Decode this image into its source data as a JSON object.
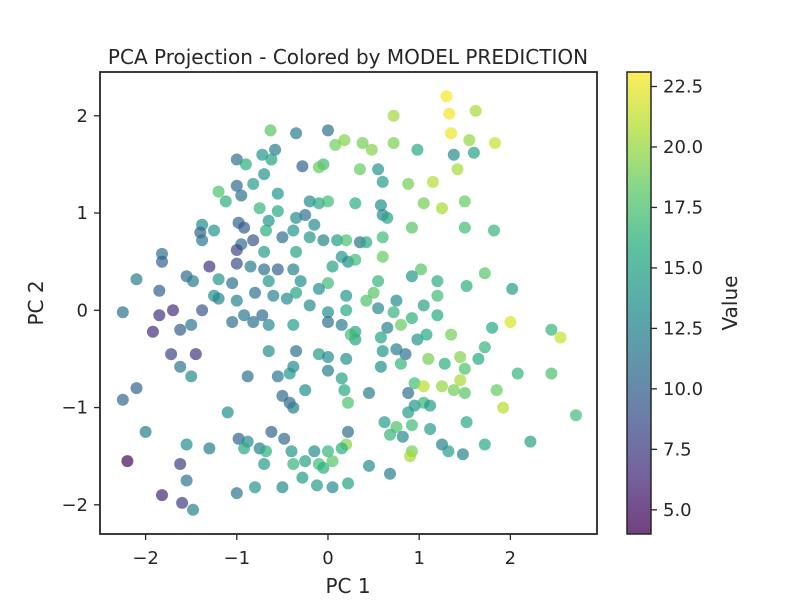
{
  "chart_data": {
    "type": "scatter",
    "title": "PCA Projection - Colored by MODEL PREDICTION",
    "xlabel": "PC 1",
    "ylabel": "PC 2",
    "xlim": [
      -2.5,
      2.95
    ],
    "ylim": [
      -2.3,
      2.45
    ],
    "xticks": [
      -2,
      -1,
      0,
      1,
      2
    ],
    "yticks": [
      -2,
      -1,
      0,
      1,
      2
    ],
    "grid": false,
    "colorbar": {
      "label": "Value",
      "range": [
        4.0,
        23.1
      ],
      "ticks": [
        5.0,
        7.5,
        10.0,
        12.5,
        15.0,
        17.5,
        20.0,
        22.5
      ],
      "colormap": "viridis"
    },
    "point_alpha": 0.7,
    "points": [
      {
        "x": 1.3,
        "y": 2.2,
        "v": 23.0
      },
      {
        "x": 1.33,
        "y": 2.02,
        "v": 22.8
      },
      {
        "x": 1.62,
        "y": 2.05,
        "v": 20.5
      },
      {
        "x": 0.72,
        "y": 2.0,
        "v": 20.2
      },
      {
        "x": 1.35,
        "y": 1.82,
        "v": 22.6
      },
      {
        "x": 1.55,
        "y": 1.75,
        "v": 20.0
      },
      {
        "x": 1.83,
        "y": 1.72,
        "v": 21.6
      },
      {
        "x": 0.0,
        "y": 1.85,
        "v": 11.0
      },
      {
        "x": -0.35,
        "y": 1.82,
        "v": 12.0
      },
      {
        "x": -0.63,
        "y": 1.85,
        "v": 18.0
      },
      {
        "x": 0.08,
        "y": 1.7,
        "v": 18.8
      },
      {
        "x": 0.18,
        "y": 1.75,
        "v": 19.5
      },
      {
        "x": 0.38,
        "y": 1.72,
        "v": 19.0
      },
      {
        "x": 0.72,
        "y": 1.72,
        "v": 19.2
      },
      {
        "x": 0.48,
        "y": 1.65,
        "v": 19.5
      },
      {
        "x": 0.98,
        "y": 1.65,
        "v": 15.5
      },
      {
        "x": 1.38,
        "y": 1.6,
        "v": 13.0
      },
      {
        "x": 1.6,
        "y": 1.62,
        "v": 15.0
      },
      {
        "x": -0.58,
        "y": 1.65,
        "v": 12.0
      },
      {
        "x": -0.72,
        "y": 1.6,
        "v": 14.0
      },
      {
        "x": -1.0,
        "y": 1.55,
        "v": 11.0
      },
      {
        "x": -0.9,
        "y": 1.5,
        "v": 16.0
      },
      {
        "x": -0.62,
        "y": 1.55,
        "v": 15.0
      },
      {
        "x": -0.28,
        "y": 1.48,
        "v": 10.0
      },
      {
        "x": -0.05,
        "y": 1.5,
        "v": 17.0
      },
      {
        "x": -0.1,
        "y": 1.47,
        "v": 18.5
      },
      {
        "x": 0.35,
        "y": 1.45,
        "v": 18.5
      },
      {
        "x": 0.55,
        "y": 1.45,
        "v": 14.0
      },
      {
        "x": 1.42,
        "y": 1.45,
        "v": 20.5
      },
      {
        "x": -0.7,
        "y": 1.4,
        "v": 14.0
      },
      {
        "x": -0.82,
        "y": 1.3,
        "v": 14.5
      },
      {
        "x": 1.15,
        "y": 1.32,
        "v": 21.0
      },
      {
        "x": 0.88,
        "y": 1.3,
        "v": 19.0
      },
      {
        "x": 0.6,
        "y": 1.32,
        "v": 14.5
      },
      {
        "x": -1.0,
        "y": 1.28,
        "v": 10.5
      },
      {
        "x": -1.2,
        "y": 1.22,
        "v": 17.5
      },
      {
        "x": -0.95,
        "y": 1.18,
        "v": 11.0
      },
      {
        "x": -0.55,
        "y": 1.2,
        "v": 14.0
      },
      {
        "x": -1.12,
        "y": 1.12,
        "v": 16.0
      },
      {
        "x": 1.05,
        "y": 1.1,
        "v": 19.0
      },
      {
        "x": -0.2,
        "y": 1.12,
        "v": 13.0
      },
      {
        "x": -0.1,
        "y": 1.1,
        "v": 15.5
      },
      {
        "x": 0.0,
        "y": 1.12,
        "v": 17.0
      },
      {
        "x": 0.3,
        "y": 1.1,
        "v": 16.0
      },
      {
        "x": 0.58,
        "y": 1.08,
        "v": 13.5
      },
      {
        "x": 1.25,
        "y": 1.05,
        "v": 20.5
      },
      {
        "x": 1.5,
        "y": 1.12,
        "v": 18.5
      },
      {
        "x": -0.75,
        "y": 1.05,
        "v": 16.5
      },
      {
        "x": -0.55,
        "y": 1.02,
        "v": 15.5
      },
      {
        "x": -0.25,
        "y": 0.98,
        "v": 11.0
      },
      {
        "x": -0.35,
        "y": 0.95,
        "v": 13.0
      },
      {
        "x": 0.6,
        "y": 0.98,
        "v": 13.0
      },
      {
        "x": 0.65,
        "y": 0.95,
        "v": 15.0
      },
      {
        "x": -0.65,
        "y": 0.92,
        "v": 14.0
      },
      {
        "x": -0.98,
        "y": 0.9,
        "v": 10.0
      },
      {
        "x": -0.92,
        "y": 0.85,
        "v": 9.5
      },
      {
        "x": -0.68,
        "y": 0.82,
        "v": 16.0
      },
      {
        "x": -1.38,
        "y": 0.88,
        "v": 13.5
      },
      {
        "x": -1.25,
        "y": 0.82,
        "v": 14.0
      },
      {
        "x": -1.4,
        "y": 0.8,
        "v": 10.0
      },
      {
        "x": -0.15,
        "y": 0.88,
        "v": 13.0
      },
      {
        "x": -0.38,
        "y": 0.82,
        "v": 14.0
      },
      {
        "x": -0.5,
        "y": 0.75,
        "v": 11.0
      },
      {
        "x": 0.92,
        "y": 0.85,
        "v": 18.0
      },
      {
        "x": 1.5,
        "y": 0.85,
        "v": 17.0
      },
      {
        "x": 1.82,
        "y": 0.82,
        "v": 16.5
      },
      {
        "x": -0.2,
        "y": 0.75,
        "v": 14.0
      },
      {
        "x": -0.05,
        "y": 0.72,
        "v": 12.5
      },
      {
        "x": 0.1,
        "y": 0.72,
        "v": 14.5
      },
      {
        "x": 0.2,
        "y": 0.72,
        "v": 17.5
      },
      {
        "x": 0.35,
        "y": 0.7,
        "v": 11.0
      },
      {
        "x": 0.42,
        "y": 0.7,
        "v": 15.5
      },
      {
        "x": 0.6,
        "y": 0.75,
        "v": 17.0
      },
      {
        "x": -1.38,
        "y": 0.72,
        "v": 11.5
      },
      {
        "x": -0.95,
        "y": 0.68,
        "v": 11.0
      },
      {
        "x": -0.82,
        "y": 0.72,
        "v": 9.0
      },
      {
        "x": -1.0,
        "y": 0.62,
        "v": 8.0
      },
      {
        "x": -0.7,
        "y": 0.6,
        "v": 14.5
      },
      {
        "x": -0.35,
        "y": 0.6,
        "v": 15.0
      },
      {
        "x": -1.82,
        "y": 0.58,
        "v": 11.0
      },
      {
        "x": -1.82,
        "y": 0.5,
        "v": 10.0
      },
      {
        "x": 0.15,
        "y": 0.55,
        "v": 14.0
      },
      {
        "x": 0.22,
        "y": 0.5,
        "v": 13.5
      },
      {
        "x": 0.3,
        "y": 0.52,
        "v": 17.0
      },
      {
        "x": 0.6,
        "y": 0.55,
        "v": 18.5
      },
      {
        "x": -1.3,
        "y": 0.45,
        "v": 7.0
      },
      {
        "x": -1.0,
        "y": 0.48,
        "v": 8.5
      },
      {
        "x": -0.85,
        "y": 0.45,
        "v": 12.0
      },
      {
        "x": -0.7,
        "y": 0.42,
        "v": 11.0
      },
      {
        "x": -0.55,
        "y": 0.42,
        "v": 10.0
      },
      {
        "x": -0.38,
        "y": 0.42,
        "v": 12.5
      },
      {
        "x": 0.05,
        "y": 0.45,
        "v": 15.0
      },
      {
        "x": 1.02,
        "y": 0.42,
        "v": 18.0
      },
      {
        "x": -1.55,
        "y": 0.35,
        "v": 10.5
      },
      {
        "x": -1.48,
        "y": 0.3,
        "v": 12.0
      },
      {
        "x": -2.1,
        "y": 0.32,
        "v": 12.0
      },
      {
        "x": -1.2,
        "y": 0.32,
        "v": 14.0
      },
      {
        "x": -1.05,
        "y": 0.28,
        "v": 11.0
      },
      {
        "x": -0.65,
        "y": 0.3,
        "v": 14.0
      },
      {
        "x": -0.3,
        "y": 0.3,
        "v": 13.5
      },
      {
        "x": 0.0,
        "y": 0.28,
        "v": 17.0
      },
      {
        "x": 0.55,
        "y": 0.3,
        "v": 16.5
      },
      {
        "x": 0.92,
        "y": 0.35,
        "v": 14.0
      },
      {
        "x": 1.2,
        "y": 0.3,
        "v": 16.0
      },
      {
        "x": 1.72,
        "y": 0.38,
        "v": 18.0
      },
      {
        "x": 1.52,
        "y": 0.25,
        "v": 16.0
      },
      {
        "x": 2.02,
        "y": 0.22,
        "v": 14.5
      },
      {
        "x": -1.85,
        "y": 0.2,
        "v": 9.5
      },
      {
        "x": -1.25,
        "y": 0.15,
        "v": 13.5
      },
      {
        "x": -1.2,
        "y": 0.12,
        "v": 12.5
      },
      {
        "x": -1.0,
        "y": 0.1,
        "v": 12.5
      },
      {
        "x": -0.8,
        "y": 0.18,
        "v": 11.0
      },
      {
        "x": -0.6,
        "y": 0.15,
        "v": 12.5
      },
      {
        "x": -0.45,
        "y": 0.12,
        "v": 13.0
      },
      {
        "x": -0.35,
        "y": 0.18,
        "v": 15.0
      },
      {
        "x": -0.1,
        "y": 0.22,
        "v": 13.5
      },
      {
        "x": 0.2,
        "y": 0.15,
        "v": 14.0
      },
      {
        "x": 0.5,
        "y": 0.18,
        "v": 18.0
      },
      {
        "x": 0.42,
        "y": 0.1,
        "v": 17.5
      },
      {
        "x": 0.75,
        "y": 0.1,
        "v": 13.0
      },
      {
        "x": 1.2,
        "y": 0.15,
        "v": 17.0
      },
      {
        "x": -1.7,
        "y": 0.0,
        "v": 6.5
      },
      {
        "x": -2.25,
        "y": -0.02,
        "v": 11.0
      },
      {
        "x": -1.85,
        "y": -0.05,
        "v": 7.0
      },
      {
        "x": -1.38,
        "y": 0.0,
        "v": 9.0
      },
      {
        "x": -0.92,
        "y": -0.05,
        "v": 11.5
      },
      {
        "x": -0.72,
        "y": -0.05,
        "v": 10.5
      },
      {
        "x": -0.2,
        "y": 0.05,
        "v": 13.0
      },
      {
        "x": 0.0,
        "y": -0.02,
        "v": 13.5
      },
      {
        "x": 0.2,
        "y": 0.0,
        "v": 15.5
      },
      {
        "x": 0.55,
        "y": 0.02,
        "v": 13.0
      },
      {
        "x": 0.72,
        "y": -0.02,
        "v": 16.5
      },
      {
        "x": 0.92,
        "y": -0.08,
        "v": 16.0
      },
      {
        "x": 1.05,
        "y": 0.05,
        "v": 15.0
      },
      {
        "x": 1.2,
        "y": -0.05,
        "v": 15.5
      },
      {
        "x": 2.0,
        "y": -0.12,
        "v": 22.0
      },
      {
        "x": 2.45,
        "y": -0.2,
        "v": 16.5
      },
      {
        "x": 2.55,
        "y": -0.28,
        "v": 21.5
      },
      {
        "x": -1.5,
        "y": -0.15,
        "v": 11.5
      },
      {
        "x": -1.62,
        "y": -0.2,
        "v": 9.5
      },
      {
        "x": -1.92,
        "y": -0.22,
        "v": 6.5
      },
      {
        "x": -1.05,
        "y": -0.12,
        "v": 11.0
      },
      {
        "x": -0.82,
        "y": -0.12,
        "v": 11.0
      },
      {
        "x": -0.65,
        "y": -0.15,
        "v": 13.0
      },
      {
        "x": -0.38,
        "y": -0.15,
        "v": 14.5
      },
      {
        "x": 0.0,
        "y": -0.12,
        "v": 11.0
      },
      {
        "x": 0.15,
        "y": -0.15,
        "v": 12.0
      },
      {
        "x": 0.3,
        "y": -0.22,
        "v": 15.5
      },
      {
        "x": 0.3,
        "y": -0.3,
        "v": 15.0
      },
      {
        "x": 0.25,
        "y": -0.25,
        "v": 17.0
      },
      {
        "x": 0.65,
        "y": -0.18,
        "v": 12.5
      },
      {
        "x": 0.8,
        "y": -0.15,
        "v": 18.5
      },
      {
        "x": 0.58,
        "y": -0.28,
        "v": 15.0
      },
      {
        "x": 0.98,
        "y": -0.3,
        "v": 14.0
      },
      {
        "x": 1.08,
        "y": -0.25,
        "v": 15.5
      },
      {
        "x": 1.35,
        "y": -0.25,
        "v": 19.0
      },
      {
        "x": 1.8,
        "y": -0.18,
        "v": 15.5
      },
      {
        "x": 1.72,
        "y": -0.38,
        "v": 16.5
      },
      {
        "x": -1.72,
        "y": -0.45,
        "v": 8.0
      },
      {
        "x": -1.45,
        "y": -0.45,
        "v": 7.0
      },
      {
        "x": -0.35,
        "y": -0.42,
        "v": 11.0
      },
      {
        "x": -0.65,
        "y": -0.42,
        "v": 13.5
      },
      {
        "x": -0.1,
        "y": -0.45,
        "v": 14.5
      },
      {
        "x": 0.0,
        "y": -0.48,
        "v": 13.0
      },
      {
        "x": 0.2,
        "y": -0.5,
        "v": 13.5
      },
      {
        "x": 0.6,
        "y": -0.42,
        "v": 14.0
      },
      {
        "x": 0.75,
        "y": -0.4,
        "v": 12.0
      },
      {
        "x": 0.85,
        "y": -0.45,
        "v": 11.0
      },
      {
        "x": 1.1,
        "y": -0.5,
        "v": 19.0
      },
      {
        "x": 1.45,
        "y": -0.48,
        "v": 19.5
      },
      {
        "x": 1.65,
        "y": -0.5,
        "v": 15.5
      },
      {
        "x": -1.62,
        "y": -0.58,
        "v": 11.5
      },
      {
        "x": -0.38,
        "y": -0.58,
        "v": 13.0
      },
      {
        "x": 0.58,
        "y": -0.58,
        "v": 13.5
      },
      {
        "x": 0.8,
        "y": -0.55,
        "v": 16.5
      },
      {
        "x": 1.28,
        "y": -0.55,
        "v": 16.0
      },
      {
        "x": 1.5,
        "y": -0.6,
        "v": 17.5
      },
      {
        "x": 2.08,
        "y": -0.65,
        "v": 16.5
      },
      {
        "x": 2.45,
        "y": -0.65,
        "v": 17.5
      },
      {
        "x": -1.5,
        "y": -0.68,
        "v": 13.0
      },
      {
        "x": -0.88,
        "y": -0.68,
        "v": 11.0
      },
      {
        "x": -0.55,
        "y": -0.68,
        "v": 11.5
      },
      {
        "x": -0.42,
        "y": -0.65,
        "v": 14.0
      },
      {
        "x": 0.0,
        "y": -0.62,
        "v": 12.0
      },
      {
        "x": 0.15,
        "y": -0.7,
        "v": 15.0
      },
      {
        "x": 0.95,
        "y": -0.75,
        "v": 17.0
      },
      {
        "x": 1.45,
        "y": -0.72,
        "v": 20.5
      },
      {
        "x": 1.25,
        "y": -0.78,
        "v": 20.0
      },
      {
        "x": 1.05,
        "y": -0.78,
        "v": 21.0
      },
      {
        "x": -2.1,
        "y": -0.8,
        "v": 10.0
      },
      {
        "x": -0.5,
        "y": -0.88,
        "v": 10.5
      },
      {
        "x": -0.25,
        "y": -0.82,
        "v": 13.5
      },
      {
        "x": 0.18,
        "y": -0.82,
        "v": 15.5
      },
      {
        "x": 0.45,
        "y": -0.85,
        "v": 12.0
      },
      {
        "x": 0.88,
        "y": -0.85,
        "v": 11.0
      },
      {
        "x": 1.38,
        "y": -0.82,
        "v": 19.0
      },
      {
        "x": 1.5,
        "y": -0.85,
        "v": 18.0
      },
      {
        "x": 1.85,
        "y": -0.82,
        "v": 18.5
      },
      {
        "x": -2.25,
        "y": -0.92,
        "v": 10.5
      },
      {
        "x": -0.42,
        "y": -0.95,
        "v": 10.5
      },
      {
        "x": -0.38,
        "y": -1.0,
        "v": 12.0
      },
      {
        "x": 0.22,
        "y": -0.95,
        "v": 17.5
      },
      {
        "x": 0.95,
        "y": -0.98,
        "v": 14.0
      },
      {
        "x": 1.05,
        "y": -0.95,
        "v": 16.5
      },
      {
        "x": 1.12,
        "y": -0.98,
        "v": 14.5
      },
      {
        "x": 1.92,
        "y": -1.0,
        "v": 21.0
      },
      {
        "x": -1.1,
        "y": -1.05,
        "v": 13.5
      },
      {
        "x": 0.88,
        "y": -1.05,
        "v": 14.5
      },
      {
        "x": 2.72,
        "y": -1.08,
        "v": 17.0
      },
      {
        "x": 1.52,
        "y": -1.15,
        "v": 15.5
      },
      {
        "x": 0.62,
        "y": -1.15,
        "v": 14.5
      },
      {
        "x": 0.75,
        "y": -1.2,
        "v": 17.5
      },
      {
        "x": 0.92,
        "y": -1.18,
        "v": 17.0
      },
      {
        "x": -2.0,
        "y": -1.25,
        "v": 12.0
      },
      {
        "x": -0.62,
        "y": -1.25,
        "v": 10.0
      },
      {
        "x": 0.22,
        "y": -1.25,
        "v": 11.0
      },
      {
        "x": 1.12,
        "y": -1.22,
        "v": 14.5
      },
      {
        "x": 0.68,
        "y": -1.28,
        "v": 16.5
      },
      {
        "x": 0.82,
        "y": -1.3,
        "v": 13.0
      },
      {
        "x": -0.98,
        "y": -1.32,
        "v": 10.0
      },
      {
        "x": -0.88,
        "y": -1.35,
        "v": 13.0
      },
      {
        "x": -0.48,
        "y": -1.32,
        "v": 10.5
      },
      {
        "x": 0.2,
        "y": -1.38,
        "v": 19.5
      },
      {
        "x": 1.25,
        "y": -1.38,
        "v": 12.5
      },
      {
        "x": 1.72,
        "y": -1.38,
        "v": 15.5
      },
      {
        "x": 2.22,
        "y": -1.35,
        "v": 15.0
      },
      {
        "x": -1.55,
        "y": -1.38,
        "v": 13.5
      },
      {
        "x": -1.3,
        "y": -1.42,
        "v": 12.0
      },
      {
        "x": -0.92,
        "y": -1.42,
        "v": 15.5
      },
      {
        "x": -0.75,
        "y": -1.42,
        "v": 12.0
      },
      {
        "x": -0.68,
        "y": -1.45,
        "v": 16.0
      },
      {
        "x": -0.4,
        "y": -1.45,
        "v": 14.0
      },
      {
        "x": -0.15,
        "y": -1.45,
        "v": 13.5
      },
      {
        "x": 0.0,
        "y": -1.45,
        "v": 16.5
      },
      {
        "x": 0.15,
        "y": -1.42,
        "v": 16.0
      },
      {
        "x": 0.92,
        "y": -1.45,
        "v": 19.0
      },
      {
        "x": 1.32,
        "y": -1.45,
        "v": 14.5
      },
      {
        "x": 0.9,
        "y": -1.5,
        "v": 20.5
      },
      {
        "x": 1.48,
        "y": -1.48,
        "v": 12.5
      },
      {
        "x": -2.2,
        "y": -1.55,
        "v": 4.5
      },
      {
        "x": -1.62,
        "y": -1.58,
        "v": 7.5
      },
      {
        "x": -0.7,
        "y": -1.58,
        "v": 14.5
      },
      {
        "x": -0.38,
        "y": -1.58,
        "v": 16.5
      },
      {
        "x": -0.1,
        "y": -1.58,
        "v": 17.0
      },
      {
        "x": -0.05,
        "y": -1.62,
        "v": 16.0
      },
      {
        "x": -0.25,
        "y": -1.55,
        "v": 15.0
      },
      {
        "x": 0.05,
        "y": -1.55,
        "v": 18.0
      },
      {
        "x": 0.45,
        "y": -1.6,
        "v": 13.5
      },
      {
        "x": 0.68,
        "y": -1.68,
        "v": 12.0
      },
      {
        "x": -1.55,
        "y": -1.75,
        "v": 11.5
      },
      {
        "x": -0.28,
        "y": -1.72,
        "v": 14.5
      },
      {
        "x": -1.0,
        "y": -1.88,
        "v": 11.5
      },
      {
        "x": -0.8,
        "y": -1.82,
        "v": 14.0
      },
      {
        "x": -0.5,
        "y": -1.82,
        "v": 13.0
      },
      {
        "x": -0.12,
        "y": -1.8,
        "v": 14.5
      },
      {
        "x": 0.05,
        "y": -1.82,
        "v": 13.0
      },
      {
        "x": 0.22,
        "y": -1.78,
        "v": 15.0
      },
      {
        "x": -1.82,
        "y": -1.9,
        "v": 6.0
      },
      {
        "x": -1.6,
        "y": -1.98,
        "v": 7.5
      },
      {
        "x": -1.48,
        "y": -2.05,
        "v": 12.5
      }
    ]
  }
}
